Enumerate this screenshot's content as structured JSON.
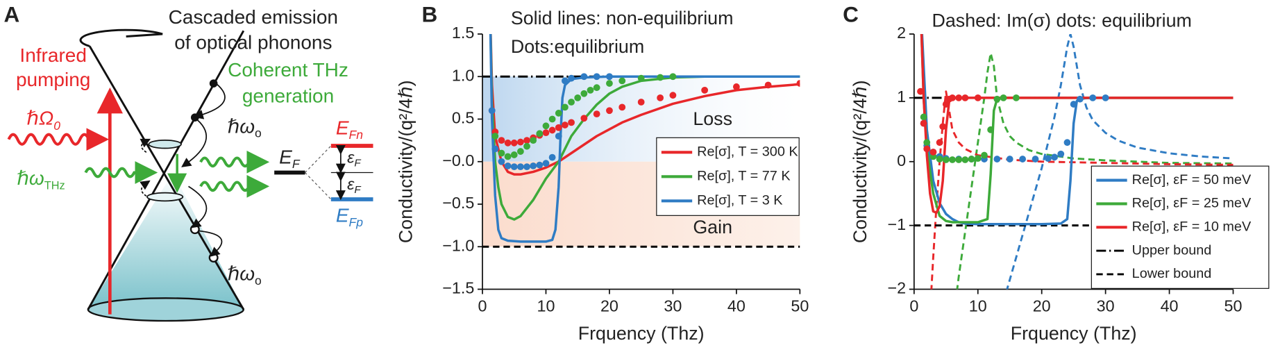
{
  "panel_a": {
    "label": "A",
    "phonon_text": [
      "Cascaded emission",
      "of optical phonons"
    ],
    "pump_text": [
      "Infrared",
      "pumping"
    ],
    "pump_freq": {
      "main": "ℏΩ",
      "sub": "0"
    },
    "thz_text": [
      "Coherent THz",
      "generation"
    ],
    "thz_freq": {
      "main": "ℏω",
      "sub": "THz"
    },
    "phonon_freq": [
      {
        "main": "ℏω",
        "sub": "o"
      },
      {
        "main": "ℏω",
        "sub": "o"
      }
    ],
    "fermi": {
      "main": "E",
      "sub": "F"
    },
    "fermi_n": {
      "main": "E",
      "sub": "Fn"
    },
    "fermi_p": {
      "main": "E",
      "sub": "Fp"
    },
    "eps": [
      {
        "main": "ε",
        "sub": "F"
      },
      {
        "main": "ε",
        "sub": "F"
      }
    ]
  },
  "chart_data": [
    {
      "type": "line",
      "panel_label": "B",
      "annotations": [
        "Solid lines: non-equilibrium",
        "Dots:equilibrium",
        "Loss",
        "Gain"
      ],
      "x_label": "Frquency (Thz)",
      "y_label": "Conductivity/(q²/4ℏ)",
      "xlim": [
        0,
        50
      ],
      "xticks": [
        0,
        10,
        20,
        30,
        40,
        50
      ],
      "ylim": [
        -1.5,
        1.5
      ],
      "yticks": [
        {
          "value": -1.5,
          "label": "−1.5"
        },
        {
          "value": -1,
          "label": "−1.0"
        },
        {
          "value": -0.5,
          "label": "−0.5"
        },
        {
          "value": 0,
          "label": "−0.0"
        },
        0.5,
        {
          "value": 1,
          "label": "1.0"
        },
        1.5
      ],
      "legend": "center right",
      "shading": true,
      "series": [
        {
          "name": "Re[σ], T = 300 K",
          "color": "#e8272a",
          "style": "solid",
          "x": [
            1.2,
            1.5,
            2,
            3,
            4,
            5,
            6,
            8,
            10,
            12,
            14,
            16,
            18,
            20,
            22,
            25,
            30,
            35,
            40,
            45,
            50
          ],
          "values": [
            1.8,
            0.9,
            0.3,
            0.0,
            -0.12,
            -0.15,
            -0.15,
            -0.12,
            -0.07,
            0.0,
            0.1,
            0.2,
            0.3,
            0.38,
            0.46,
            0.55,
            0.68,
            0.77,
            0.84,
            0.88,
            0.91
          ]
        },
        {
          "name": "Re[σ], T = 77 K",
          "color": "#3daa3a",
          "style": "solid",
          "x": [
            1.2,
            1.5,
            2,
            2.5,
            3,
            4,
            5,
            6,
            8,
            10,
            12,
            14,
            16,
            18,
            20,
            22,
            25,
            30,
            35,
            40,
            50
          ],
          "values": [
            1.8,
            0.7,
            0.0,
            -0.3,
            -0.5,
            -0.65,
            -0.68,
            -0.64,
            -0.45,
            -0.2,
            0.0,
            0.3,
            0.5,
            0.67,
            0.8,
            0.88,
            0.95,
            0.99,
            1.0,
            1.0,
            1.0
          ]
        },
        {
          "name": "Re[σ], T = 3 K",
          "color": "#2f7cc4",
          "style": "solid",
          "x": [
            1.2,
            1.5,
            2,
            2.5,
            3,
            4,
            6,
            8,
            10,
            11,
            11.5,
            12,
            12.3,
            12.6,
            13,
            14,
            16,
            20,
            30,
            40,
            50
          ],
          "values": [
            1.8,
            0.5,
            -0.4,
            -0.8,
            -0.9,
            -0.93,
            -0.94,
            -0.94,
            -0.94,
            -0.92,
            -0.8,
            -0.3,
            0.3,
            0.75,
            0.9,
            0.97,
            0.99,
            1.0,
            1.0,
            1.0,
            1.0
          ]
        },
        {
          "color": "#e8272a",
          "style": "markers",
          "x": [
            1.5,
            2,
            3,
            4,
            5,
            6,
            7,
            8,
            9,
            10,
            11,
            12,
            13,
            14,
            16,
            18,
            20,
            22,
            25,
            28,
            30,
            35,
            40,
            45,
            50
          ],
          "values": [
            0.6,
            0.35,
            0.25,
            0.22,
            0.22,
            0.23,
            0.25,
            0.28,
            0.31,
            0.34,
            0.37,
            0.4,
            0.43,
            0.46,
            0.51,
            0.56,
            0.6,
            0.64,
            0.7,
            0.75,
            0.78,
            0.84,
            0.88,
            0.9,
            0.92
          ]
        },
        {
          "color": "#3daa3a",
          "style": "markers",
          "x": [
            2,
            3,
            4,
            5,
            6,
            7,
            8,
            9,
            10,
            11,
            12,
            13,
            14,
            15,
            16,
            17,
            18,
            20,
            22,
            25,
            28,
            30
          ],
          "values": [
            0.3,
            0.1,
            0.06,
            0.08,
            0.12,
            0.18,
            0.25,
            0.33,
            0.42,
            0.5,
            0.57,
            0.64,
            0.7,
            0.75,
            0.8,
            0.84,
            0.87,
            0.92,
            0.95,
            0.98,
            0.99,
            1.0
          ]
        },
        {
          "color": "#2f7cc4",
          "style": "markers",
          "x": [
            1.5,
            2,
            3,
            4,
            5,
            6,
            7,
            8,
            9,
            10,
            11,
            12,
            13,
            14,
            16,
            18,
            20
          ],
          "values": [
            0.6,
            0.15,
            0.0,
            -0.05,
            -0.06,
            -0.06,
            -0.06,
            -0.05,
            -0.04,
            -0.02,
            0.05,
            0.3,
            0.95,
            0.98,
            1.0,
            1.0,
            1.0
          ]
        },
        {
          "color": "#000000",
          "style": "dashdot",
          "x": [
            0,
            50
          ],
          "values": [
            1,
            1
          ]
        },
        {
          "color": "#000000",
          "style": "dashed",
          "x": [
            0,
            50
          ],
          "values": [
            -1,
            -1
          ]
        }
      ]
    },
    {
      "type": "line",
      "panel_label": "C",
      "annotations": [
        "Dashed: Im(σ) dots: equilibrium"
      ],
      "x_label": "Frquency (Thz)",
      "y_label": "Conductivity/(q²/4ℏ)",
      "xlim": [
        0,
        50
      ],
      "xticks": [
        0,
        10,
        20,
        30,
        40,
        50
      ],
      "ylim": [
        -2,
        2
      ],
      "yticks": [
        {
          "value": -2,
          "label": "−2"
        },
        {
          "value": -1,
          "label": "−1"
        },
        0,
        1,
        2
      ],
      "legend": "lower right",
      "shading": false,
      "series": [
        {
          "name": "Re[σ], εF = 50 meV",
          "color": "#2f7cc4",
          "style": "solid",
          "x": [
            1,
            1.5,
            2,
            3,
            4,
            5,
            6,
            7,
            8,
            10,
            15,
            20,
            23,
            24,
            24.5,
            25,
            25.5,
            26,
            28,
            30,
            40,
            50
          ],
          "values": [
            2.5,
            1.5,
            0.5,
            -0.3,
            -0.65,
            -0.82,
            -0.9,
            -0.95,
            -0.97,
            -0.98,
            -0.98,
            -0.98,
            -0.97,
            -0.9,
            -0.3,
            0.6,
            0.95,
            0.99,
            1.0,
            1.0,
            1.0,
            1.0
          ]
        },
        {
          "name": "Re[σ], εF = 25 meV",
          "color": "#3daa3a",
          "style": "solid",
          "x": [
            1,
            1.5,
            2,
            3,
            4,
            5,
            6,
            8,
            10,
            11.5,
            12,
            12.5,
            13,
            14,
            20,
            30,
            40,
            50
          ],
          "values": [
            2.5,
            1.0,
            0.2,
            -0.5,
            -0.85,
            -0.93,
            -0.95,
            -0.95,
            -0.95,
            -0.9,
            -0.2,
            0.8,
            0.98,
            1.0,
            1.0,
            1.0,
            1.0,
            1.0
          ]
        },
        {
          "name": "Re[σ], εF = 10 meV",
          "color": "#e8272a",
          "style": "solid",
          "x": [
            1,
            1.5,
            2,
            2.5,
            3,
            3.5,
            4,
            4.5,
            5,
            5.5,
            6,
            8,
            20,
            30,
            40,
            50
          ],
          "values": [
            2.5,
            1.0,
            0.1,
            -0.5,
            -0.78,
            -0.8,
            -0.7,
            -0.3,
            0.5,
            0.95,
            1.0,
            1.0,
            1.0,
            1.0,
            1.0,
            1.0
          ]
        },
        {
          "color": "#2f7cc4",
          "style": "markers",
          "x": [
            1.5,
            2,
            3,
            4,
            5,
            7,
            9,
            11,
            13,
            15,
            17,
            19,
            21,
            22,
            23,
            24,
            25,
            26,
            28,
            30
          ],
          "values": [
            0.6,
            0.25,
            0.15,
            0.08,
            0.05,
            0.04,
            0.04,
            0.04,
            0.04,
            0.04,
            0.04,
            0.04,
            0.05,
            0.07,
            0.12,
            0.3,
            0.9,
            0.98,
            1.0,
            1.0
          ]
        },
        {
          "color": "#3daa3a",
          "style": "markers",
          "x": [
            1.5,
            2,
            3,
            4,
            5,
            6,
            7,
            8,
            9,
            10,
            11,
            12,
            13,
            14,
            16
          ],
          "values": [
            0.7,
            0.3,
            0.08,
            0.04,
            0.03,
            0.03,
            0.03,
            0.03,
            0.04,
            0.05,
            0.1,
            0.5,
            0.98,
            1.0,
            1.0
          ]
        },
        {
          "color": "#e8272a",
          "style": "markers",
          "x": [
            1,
            1.5,
            2,
            3,
            4,
            4.5,
            5,
            5.5,
            6,
            7,
            8,
            10
          ],
          "values": [
            1.1,
            0.6,
            0.2,
            0.15,
            0.3,
            0.55,
            0.9,
            0.98,
            1.0,
            1.0,
            1.0,
            1.0
          ]
        },
        {
          "color": "#2f7cc4",
          "style": "dashed",
          "x": [
            14,
            16,
            18,
            20,
            22,
            23,
            24,
            24.5,
            25,
            26,
            27,
            28,
            30,
            32,
            35,
            40,
            45,
            50
          ],
          "values": [
            -2.2,
            -1.5,
            -0.8,
            -0.1,
            0.7,
            1.2,
            1.8,
            2.0,
            1.8,
            1.2,
            0.85,
            0.65,
            0.45,
            0.33,
            0.22,
            0.13,
            0.08,
            0.05
          ]
        },
        {
          "color": "#3daa3a",
          "style": "dashed",
          "x": [
            6.5,
            7,
            8,
            9,
            10,
            11,
            11.5,
            12,
            12.5,
            13,
            14,
            15,
            16,
            18,
            20,
            25,
            30,
            40,
            50
          ],
          "values": [
            -2.2,
            -1.8,
            -1.1,
            -0.4,
            0.3,
            1.0,
            1.4,
            1.7,
            1.5,
            1.0,
            0.6,
            0.4,
            0.3,
            0.18,
            0.12,
            0.05,
            0.02,
            -0.02,
            -0.03
          ]
        },
        {
          "color": "#e8272a",
          "style": "dashed",
          "x": [
            2.6,
            3,
            3.5,
            4,
            4.5,
            5,
            5.5,
            6,
            7,
            8,
            10,
            15,
            20,
            30,
            40,
            50
          ],
          "values": [
            -2.2,
            -1.5,
            -0.7,
            0.0,
            0.6,
            1.1,
            0.8,
            0.5,
            0.3,
            0.2,
            0.1,
            0.03,
            0.0,
            -0.02,
            -0.04,
            -0.05
          ]
        },
        {
          "name": "Upper bound",
          "color": "#000000",
          "style": "dashdot",
          "x": [
            0,
            50
          ],
          "values": [
            1,
            1
          ]
        },
        {
          "name": "Lower bound",
          "color": "#000000",
          "style": "dashed",
          "x": [
            0,
            50
          ],
          "values": [
            -1,
            -1
          ]
        }
      ]
    }
  ]
}
